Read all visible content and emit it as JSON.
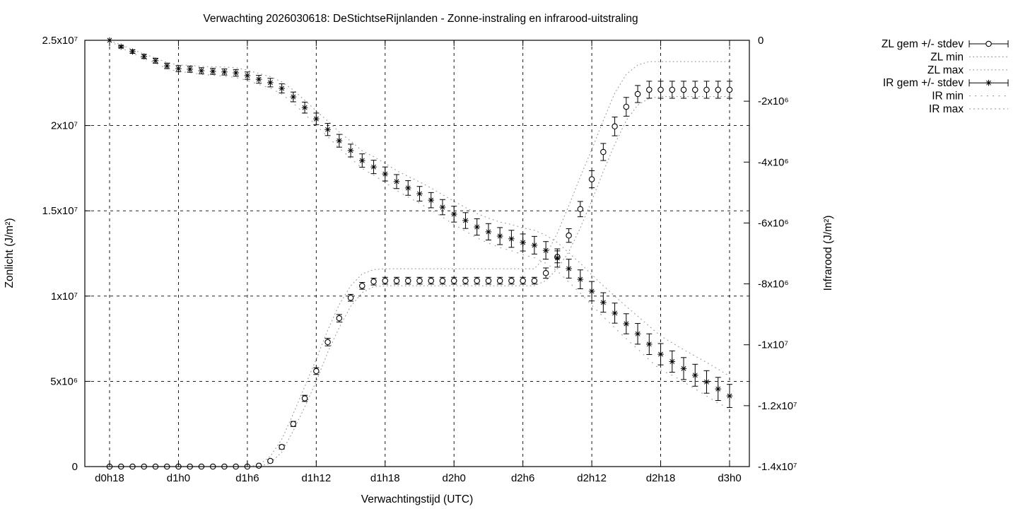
{
  "title": "Verwachting 2026030618: DeStichtseRijnlanden - Zonne-instraling en infrarood-uitstraling",
  "axes": {
    "x": {
      "label": "Verwachtingstijd (UTC)",
      "ticks": [
        {
          "hour": 0,
          "label": "d0h18"
        },
        {
          "hour": 6,
          "label": "d1h0"
        },
        {
          "hour": 12,
          "label": "d1h6"
        },
        {
          "hour": 18,
          "label": "d1h12"
        },
        {
          "hour": 24,
          "label": "d1h18"
        },
        {
          "hour": 30,
          "label": "d2h0"
        },
        {
          "hour": 36,
          "label": "d2h6"
        },
        {
          "hour": 42,
          "label": "d2h12"
        },
        {
          "hour": 48,
          "label": "d2h18"
        },
        {
          "hour": 54,
          "label": "d3h0"
        }
      ]
    },
    "y_left": {
      "label": "Zonlicht (J/m²)",
      "range_e6": [
        0,
        25
      ],
      "ticks": [
        {
          "v": 0,
          "label": "0"
        },
        {
          "v": 5,
          "label": "5x10⁶"
        },
        {
          "v": 10,
          "label": "1x10⁷"
        },
        {
          "v": 15,
          "label": "1.5x10⁷"
        },
        {
          "v": 20,
          "label": "2x10⁷"
        },
        {
          "v": 25,
          "label": "2.5x10⁷"
        }
      ]
    },
    "y_right": {
      "label": "Infrarood (J/m²)",
      "range_e6": [
        -14,
        0
      ],
      "ticks": [
        {
          "v": 0,
          "label": "0"
        },
        {
          "v": -2,
          "label": "-2x10⁶"
        },
        {
          "v": -4,
          "label": "-4x10⁶"
        },
        {
          "v": -6,
          "label": "-6x10⁶"
        },
        {
          "v": -8,
          "label": "-8x10⁶"
        },
        {
          "v": -10,
          "label": "-1x10⁷"
        },
        {
          "v": -12,
          "label": "-1.2x10⁷"
        },
        {
          "v": -14,
          "label": "-1.4x10⁷"
        }
      ]
    }
  },
  "legend": [
    {
      "label": "ZL gem +/- stdev",
      "sample": "errorbar-circle"
    },
    {
      "label": "ZL min",
      "sample": "dotted-fine"
    },
    {
      "label": "ZL max",
      "sample": "dotted-fine"
    },
    {
      "label": "IR gem +/- stdev",
      "sample": "errorbar-asterisk"
    },
    {
      "label": "IR min",
      "sample": "dotted-sparse"
    },
    {
      "label": "IR max",
      "sample": "dotted-medium"
    }
  ],
  "colors": {
    "data": "#000000",
    "envelope": "#9a9a9a",
    "grid": "#000000",
    "background": "#ffffff"
  },
  "chart_data": {
    "type": "line",
    "title": "Verwachting 2026030618: DeStichtseRijnlanden - Zonne-instraling en infrarood-uitstraling",
    "xlabel": "Verwachtingstijd (UTC)",
    "ylabel_left": "Zonlicht (J/m²)",
    "ylabel_right": "Infrarood (J/m²)",
    "grid": true,
    "legend_position": "top-right-outside",
    "unit": "J/m²",
    "value_scale": 1000000,
    "x_hour_start": 0,
    "x_hour_end": 54,
    "x_hour_step": 1,
    "x_start_label": "d0h18",
    "xlim_hours": [
      -2.16,
      55.74
    ],
    "ylim_left_e6": [
      0,
      25
    ],
    "ylim_right_e6": [
      -14,
      0
    ],
    "series": [
      {
        "name": "ZL gem +/- stdev",
        "role": "mean",
        "axis": "left",
        "marker": "circle",
        "values_e6": [
          0,
          0,
          0,
          0,
          0,
          0,
          0,
          0,
          0,
          0,
          0,
          0,
          0,
          0.05,
          0.33,
          1.15,
          2.5,
          4,
          5.6,
          7.3,
          8.7,
          9.9,
          10.6,
          10.85,
          10.9,
          10.9,
          10.9,
          10.9,
          10.9,
          10.9,
          10.9,
          10.9,
          10.9,
          10.9,
          10.9,
          10.9,
          10.9,
          10.9,
          11.35,
          12.3,
          13.55,
          15.1,
          16.85,
          18.45,
          19.95,
          21.1,
          21.85,
          22.1,
          22.1,
          22.1,
          22.1,
          22.1,
          22.1,
          22.1,
          22.1
        ],
        "stdev_e6": [
          0,
          0,
          0,
          0,
          0,
          0,
          0,
          0,
          0,
          0,
          0,
          0,
          0,
          0.02,
          0.08,
          0.12,
          0.15,
          0.18,
          0.2,
          0.22,
          0.22,
          0.2,
          0.2,
          0.2,
          0.2,
          0.2,
          0.2,
          0.2,
          0.2,
          0.2,
          0.2,
          0.2,
          0.2,
          0.2,
          0.2,
          0.2,
          0.2,
          0.2,
          0.3,
          0.35,
          0.4,
          0.45,
          0.5,
          0.5,
          0.55,
          0.55,
          0.5,
          0.5,
          0.5,
          0.5,
          0.5,
          0.5,
          0.5,
          0.5,
          0.5
        ]
      },
      {
        "name": "ZL min",
        "role": "min",
        "axis": "left",
        "line_style": "dotted-fine",
        "values_e6": [
          0,
          0,
          0,
          0,
          0,
          0,
          0,
          0,
          0,
          0,
          0,
          0,
          0,
          0,
          0.2,
          0.85,
          2.1,
          3.5,
          5,
          6.7,
          8.15,
          9.4,
          10.2,
          10.55,
          10.6,
          10.6,
          10.6,
          10.6,
          10.6,
          10.6,
          10.6,
          10.6,
          10.6,
          10.6,
          10.6,
          10.6,
          10.6,
          10.6,
          10.9,
          11.6,
          12.6,
          14,
          15.6,
          17.3,
          18.9,
          20.3,
          21.2,
          21.6,
          21.7,
          21.7,
          21.7,
          21.7,
          21.7,
          21.7,
          21.7
        ]
      },
      {
        "name": "ZL max",
        "role": "max",
        "axis": "left",
        "line_style": "dotted-fine",
        "values_e6": [
          0,
          0,
          0,
          0,
          0,
          0,
          0,
          0,
          0,
          0,
          0,
          0,
          0,
          0.1,
          0.6,
          1.6,
          3.1,
          4.7,
          6.3,
          8,
          9.5,
          10.6,
          11.3,
          11.55,
          11.6,
          11.6,
          11.6,
          11.6,
          11.6,
          11.6,
          11.6,
          11.6,
          11.6,
          11.6,
          11.6,
          11.6,
          11.6,
          11.6,
          12.35,
          13.7,
          15.3,
          17,
          18.6,
          20.3,
          21.9,
          23,
          23.55,
          23.75,
          23.75,
          23.75,
          23.75,
          23.75,
          23.75,
          23.75,
          23.75
        ]
      },
      {
        "name": "IR gem +/- stdev",
        "role": "mean",
        "axis": "right",
        "marker": "asterisk",
        "values_e6": [
          0,
          -0.21,
          -0.37,
          -0.53,
          -0.67,
          -0.84,
          -0.93,
          -0.95,
          -1,
          -1.02,
          -1.04,
          -1.07,
          -1.16,
          -1.28,
          -1.39,
          -1.58,
          -1.86,
          -2.21,
          -2.58,
          -2.93,
          -3.3,
          -3.62,
          -3.95,
          -4.16,
          -4.39,
          -4.64,
          -4.85,
          -5.04,
          -5.25,
          -5.48,
          -5.71,
          -5.92,
          -6.13,
          -6.29,
          -6.43,
          -6.52,
          -6.64,
          -6.73,
          -6.9,
          -7.15,
          -7.5,
          -7.85,
          -8.24,
          -8.61,
          -8.96,
          -9.31,
          -9.64,
          -9.98,
          -10.31,
          -10.55,
          -10.78,
          -11,
          -11.22,
          -11.45,
          -11.68
        ],
        "stdev_e6": [
          0,
          0.04,
          0.06,
          0.07,
          0.08,
          0.09,
          0.1,
          0.1,
          0.1,
          0.1,
          0.1,
          0.11,
          0.12,
          0.13,
          0.14,
          0.15,
          0.16,
          0.18,
          0.19,
          0.2,
          0.21,
          0.21,
          0.22,
          0.22,
          0.23,
          0.23,
          0.24,
          0.24,
          0.25,
          0.25,
          0.26,
          0.26,
          0.27,
          0.27,
          0.28,
          0.28,
          0.28,
          0.29,
          0.29,
          0.3,
          0.31,
          0.31,
          0.32,
          0.32,
          0.33,
          0.33,
          0.34,
          0.34,
          0.35,
          0.35,
          0.36,
          0.36,
          0.37,
          0.38,
          0.38
        ]
      },
      {
        "name": "IR min",
        "role": "min",
        "axis": "right",
        "line_style": "dotted-sparse",
        "values_e6": [
          0,
          -0.25,
          -0.42,
          -0.6,
          -0.75,
          -0.93,
          -1.03,
          -1.06,
          -1.12,
          -1.15,
          -1.18,
          -1.22,
          -1.32,
          -1.45,
          -1.57,
          -1.77,
          -2.06,
          -2.42,
          -2.8,
          -3.16,
          -3.54,
          -3.87,
          -4.21,
          -4.43,
          -4.67,
          -4.93,
          -5.15,
          -5.35,
          -5.57,
          -5.81,
          -6.05,
          -6.27,
          -6.49,
          -6.66,
          -6.81,
          -6.91,
          -7.04,
          -7.14,
          -7.32,
          -7.58,
          -7.94,
          -8.3,
          -8.7,
          -9.08,
          -9.44,
          -9.8,
          -10.14,
          -10.49,
          -10.83,
          -11,
          -11.22,
          -11.45,
          -11.68,
          -11.92,
          -12.09
        ]
      },
      {
        "name": "IR max",
        "role": "max",
        "axis": "right",
        "line_style": "dotted-medium",
        "values_e6": [
          0,
          -0.15,
          -0.3,
          -0.45,
          -0.58,
          -0.73,
          -0.81,
          -0.82,
          -0.86,
          -0.87,
          -0.88,
          -0.9,
          -0.98,
          -1.09,
          -1.19,
          -1.37,
          -1.63,
          -1.97,
          -2.32,
          -2.65,
          -3.01,
          -3.31,
          -3.63,
          -3.82,
          -4.04,
          -4.28,
          -4.47,
          -4.65,
          -4.85,
          -5.07,
          -5.29,
          -5.49,
          -5.69,
          -5.84,
          -5.97,
          -6.05,
          -6.16,
          -6.24,
          -6.4,
          -6.64,
          -6.98,
          -7.32,
          -7.7,
          -8.06,
          -8.4,
          -8.74,
          -9.06,
          -9.39,
          -9.71,
          -9.94,
          -10.16,
          -10.37,
          -10.58,
          -10.8,
          -11.03
        ]
      }
    ]
  }
}
